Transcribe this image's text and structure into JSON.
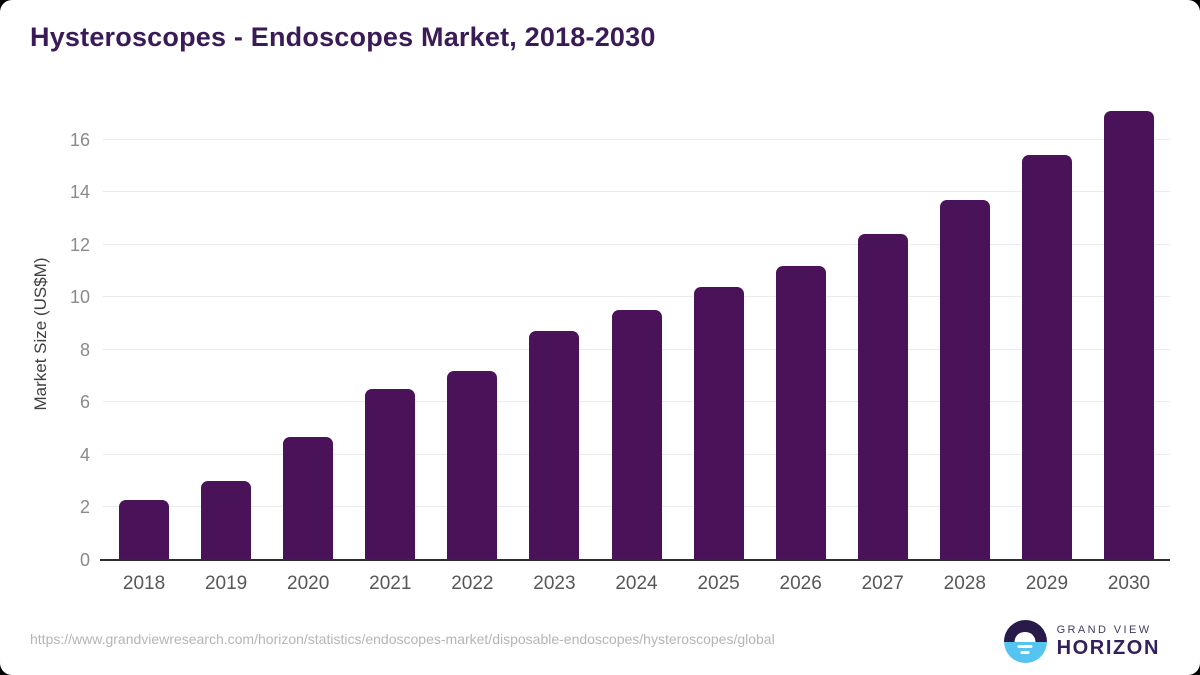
{
  "header": {
    "title": "Hysteroscopes - Endoscopes Market, 2018-2030"
  },
  "chart_data": {
    "type": "bar",
    "title": "Hysteroscopes - Endoscopes Market, 2018-2030",
    "categories": [
      "2018",
      "2019",
      "2020",
      "2021",
      "2022",
      "2023",
      "2024",
      "2025",
      "2026",
      "2027",
      "2028",
      "2029",
      "2030"
    ],
    "values": [
      2.3,
      3.0,
      4.7,
      6.5,
      7.2,
      8.7,
      9.5,
      10.4,
      11.2,
      12.4,
      13.7,
      15.4,
      17.1
    ],
    "xlabel": "",
    "ylabel": "Market Size (US$M)",
    "ylim": [
      0,
      17.2
    ],
    "yticks": [
      0,
      2,
      4,
      6,
      8,
      10,
      12,
      14,
      16
    ],
    "grid": true,
    "legend": "none"
  },
  "footer": {
    "source_url": "https://www.grandviewresearch.com/horizon/statistics/endoscopes-market/disposable-endoscopes/hysteroscopes/global",
    "brand": {
      "line1": "GRAND VIEW",
      "line2": "HORIZON"
    }
  },
  "colors": {
    "bar": "#4a1259",
    "title": "#3a1a57",
    "grid": "#ebebeb",
    "axis": "#2d2d2d",
    "y_tick_label": "#8a8a8a",
    "x_tick_label": "#57575a",
    "logo_dark": "#2a1a4a",
    "logo_blue": "#56c4f0"
  }
}
